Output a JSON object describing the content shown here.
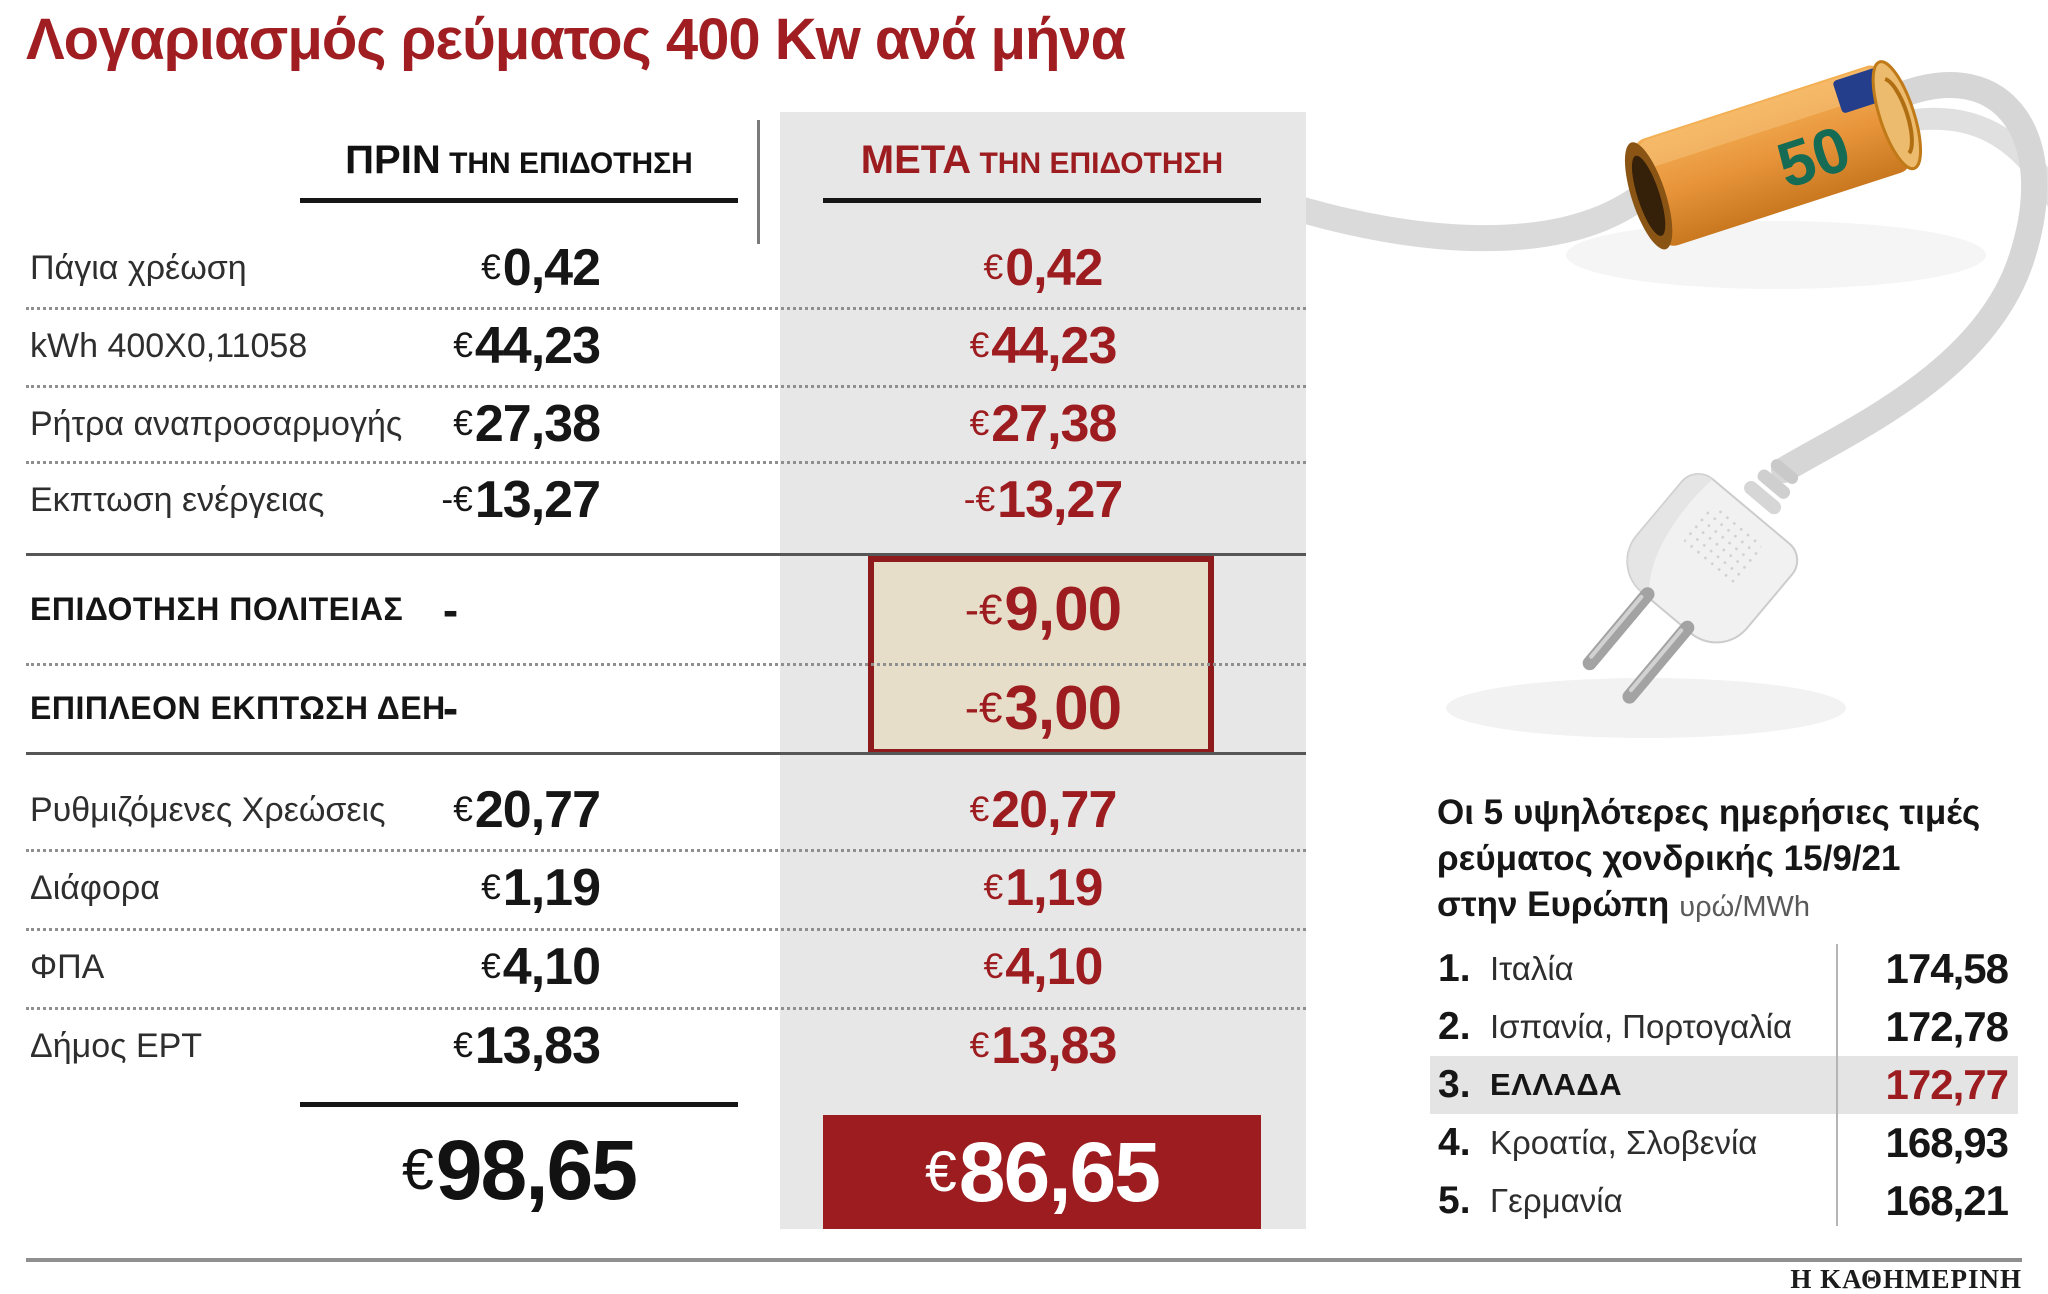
{
  "colors": {
    "accent_red": "#9d1c20",
    "box_border_red": "#8e1a1c",
    "meta_column_bg": "#e7e7e7",
    "subsidy_box_bg": "#e7dec9",
    "list_highlight_bg": "#e4e4e4"
  },
  "title": "Λογαριασμός ρεύματος 400 Kw ανά μήνα",
  "bill_table": {
    "header_before": {
      "strong": "ΠΡΙΝ",
      "rest": " ΤΗΝ ΕΠΙΔΟΤΗΣΗ"
    },
    "header_after": {
      "strong": "ΜΕΤΑ",
      "rest": " ΤΗΝ ΕΠΙΔΟΤΗΣΗ"
    },
    "rows_top": [
      {
        "label": "Πάγια χρέωση",
        "before": "€0,42",
        "after": "€0,42"
      },
      {
        "label": "kWh 400X0,11058",
        "before": "€44,23",
        "after": "€44,23"
      },
      {
        "label": "Ρήτρα αναπροσαρμογής",
        "before": "€27,38",
        "after": "€27,38"
      },
      {
        "label": "Εκπτωση ενέργειας",
        "before": "-€13,27",
        "after": "-€13,27"
      }
    ],
    "subsidy_rows": [
      {
        "label": "ΕΠΙΔΟΤΗΣΗ ΠΟΛΙΤΕΙΑΣ",
        "before": "-",
        "after": "-€9,00"
      },
      {
        "label": "ΕΠΙΠΛΕΟΝ ΕΚΠΤΩΣΗ ΔΕΗ",
        "before": "-",
        "after": "-€3,00"
      }
    ],
    "rows_bottom": [
      {
        "label": "Ρυθμιζόμενες Χρεώσεις",
        "before": "€20,77",
        "after": "€20,77"
      },
      {
        "label": "Διάφορα",
        "before": "€1,19",
        "after": "€1,19"
      },
      {
        "label": "ΦΠΑ",
        "before": "€4,10",
        "after": "€4,10"
      },
      {
        "label": "Δήμος ΕΡΤ",
        "before": "€13,83",
        "after": "€13,83"
      }
    ],
    "total_before": "€98,65",
    "total_after": "€86,65"
  },
  "price_list": {
    "heading_line1": "Οι 5 υψηλότερες ημερήσιες τιμές",
    "heading_line2": "ρεύματος χονδρικής 15/9/21",
    "heading_line3_strong": "στην Ευρώπη",
    "heading_unit": "υρώ/MWh",
    "items": [
      {
        "rank": "1.",
        "country": "Ιταλία",
        "value": "174,58"
      },
      {
        "rank": "2.",
        "country": "Ισπανία, Πορτογαλία",
        "value": "172,78"
      },
      {
        "rank": "3.",
        "country": "ΕΛΛΑΔΑ",
        "value": "172,77"
      },
      {
        "rank": "4.",
        "country": "Κροατία, Σλοβενία",
        "value": "168,93"
      },
      {
        "rank": "5.",
        "country": "Γερμανία",
        "value": "168,21"
      }
    ]
  },
  "illustration": {
    "banknote_text": "50"
  },
  "footer": {
    "brand": "Η ΚΑΘΗΜΕΡΙΝΗ"
  },
  "chart_data": [
    {
      "type": "table",
      "title": "Λογαριασμός ρεύματος 400 Kw ανά μήνα",
      "unit": "EUR",
      "columns": [
        "",
        "ΠΡΙΝ ΤΗΝ ΕΠΙΔΟΤΗΣΗ",
        "ΜΕΤΑ ΤΗΝ ΕΠΙΔΟΤΗΣΗ"
      ],
      "rows": [
        [
          "Πάγια χρέωση",
          0.42,
          0.42
        ],
        [
          "kWh 400X0,11058",
          44.23,
          44.23
        ],
        [
          "Ρήτρα αναπροσαρμογής",
          27.38,
          27.38
        ],
        [
          "Εκπτωση ενέργειας",
          -13.27,
          -13.27
        ],
        [
          "ΕΠΙΔΟΤΗΣΗ ΠΟΛΙΤΕΙΑΣ",
          null,
          -9.0
        ],
        [
          "ΕΠΙΠΛΕΟΝ ΕΚΠΤΩΣΗ ΔΕΗ",
          null,
          -3.0
        ],
        [
          "Ρυθμιζόμενες Χρεώσεις",
          20.77,
          20.77
        ],
        [
          "Διάφορα",
          1.19,
          1.19
        ],
        [
          "ΦΠΑ",
          4.1,
          4.1
        ],
        [
          "Δήμος ΕΡΤ",
          13.83,
          13.83
        ]
      ],
      "totals": {
        "before": 98.65,
        "after": 86.65
      }
    },
    {
      "type": "table",
      "title": "Οι 5 υψηλότερες ημερήσιες τιμές ρεύματος χονδρικής 15/9/21 στην Ευρώπη",
      "unit": "υρώ/MWh",
      "rows": [
        [
          "Ιταλία",
          174.58
        ],
        [
          "Ισπανία, Πορτογαλία",
          172.78
        ],
        [
          "ΕΛΛΑΔΑ",
          172.77
        ],
        [
          "Κροατία, Σλοβενία",
          168.93
        ],
        [
          "Γερμανία",
          168.21
        ]
      ],
      "highlighted_row": "ΕΛΛΑΔΑ"
    }
  ]
}
